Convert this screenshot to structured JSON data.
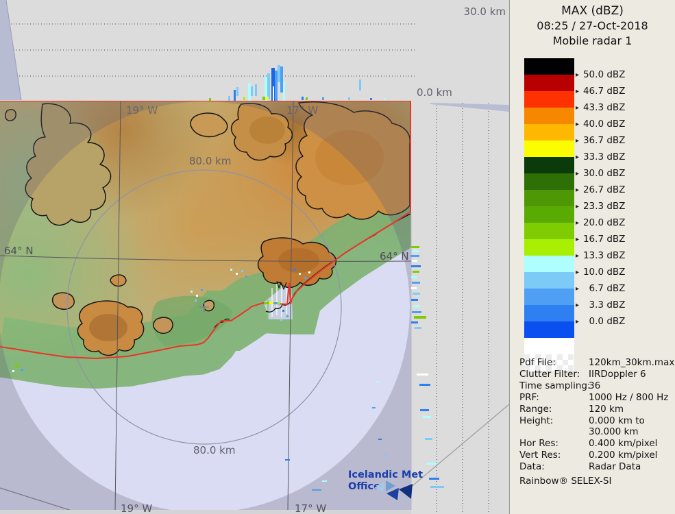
{
  "panel": {
    "title": "MAX (dBZ)",
    "datetime": "08:25 / 27-Oct-2018",
    "radar_name": "Mobile radar 1",
    "metadata": [
      {
        "label": "Pdf File:",
        "value": "120km_30km.max"
      },
      {
        "label": "Clutter Filter:",
        "value": "IIRDoppler 6"
      },
      {
        "label": "Time sampling:",
        "value": "36"
      },
      {
        "label": "PRF:",
        "value": "1000 Hz / 800 Hz"
      },
      {
        "label": "Range:",
        "value": "120 km"
      },
      {
        "label": "Height:",
        "value": "0.000 km to"
      },
      {
        "label": "",
        "value": "30.000 km"
      },
      {
        "label": "Hor Res:",
        "value": "0.400 km/pixel"
      },
      {
        "label": "Vert Res:",
        "value": "0.200 km/pixel"
      },
      {
        "label": "Data:",
        "value": "Radar Data"
      }
    ],
    "footer": "Rainbow® SELEX-SI"
  },
  "scale": {
    "unit": "dBZ",
    "arrow": "▸",
    "entries": [
      {
        "value": "50.0",
        "color": "#000000"
      },
      {
        "value": "46.7",
        "color": "#b80000"
      },
      {
        "value": "43.3",
        "color": "#fe3101"
      },
      {
        "value": "40.0",
        "color": "#f88700"
      },
      {
        "value": "36.7",
        "color": "#ffb801"
      },
      {
        "value": "33.3",
        "color": "#fdfd02"
      },
      {
        "value": "30.0",
        "color": "#0b3b0b"
      },
      {
        "value": "26.7",
        "color": "#2e7006"
      },
      {
        "value": "23.3",
        "color": "#4e9805"
      },
      {
        "value": "20.0",
        "color": "#5aaa04"
      },
      {
        "value": "16.7",
        "color": "#7fcc02"
      },
      {
        "value": "13.3",
        "color": "#a9ef01"
      },
      {
        "value": "10.0",
        "color": "#aefefe"
      },
      {
        "value": "6.7",
        "color": "#7ccbf7"
      },
      {
        "value": "3.3",
        "color": "#4f9ff5"
      },
      {
        "value": "0.0",
        "color": "#2e7ff2"
      }
    ],
    "below_zero_color": "#0a50f0",
    "white_block_color": "#ffffff",
    "checker_colors": [
      "#ffffff",
      "#ececec"
    ]
  },
  "map": {
    "axis_labels": {
      "alt_max": "30.0 km",
      "alt_zero": "0.0 km"
    },
    "ring_labels": {
      "top": "80.0 km",
      "bottom": "80.0 km"
    },
    "meridian_labels": {
      "west_top": "19° W",
      "east_top": "17° W",
      "west_bottom": "19° W",
      "east_bottom": "17° W"
    },
    "parallel_labels": {
      "left": "64° N",
      "right": "64° N"
    },
    "logo": {
      "line1": "Icelandic Met",
      "line2": "Office"
    }
  },
  "colors": {
    "accent_red": "#ec3328",
    "panel_gray": "#dcdcdc",
    "sidebar_bg": "#edeae2",
    "ocean_inner": "#dadcf3",
    "ocean_outer": "#c5c6dd",
    "terrain_khaki": "#bfae74",
    "terrain_orange": "#d08b3f",
    "terrain_green": "#7fb173",
    "logo_blue": "#1b3faa"
  }
}
